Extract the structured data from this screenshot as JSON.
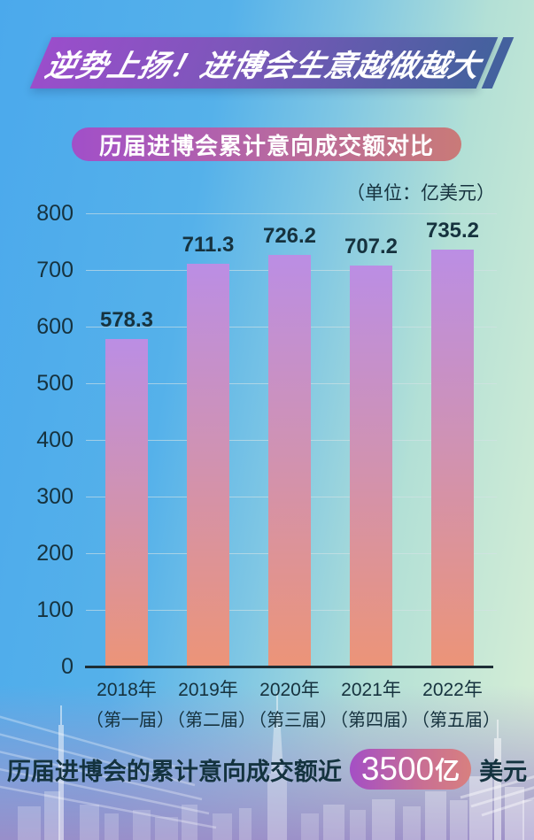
{
  "banner": {
    "title": "逆势上扬！进博会生意越做越大"
  },
  "subtitle": "历届进博会累计意向成交额对比",
  "unit_label": "（单位：亿美元）",
  "chart_data": {
    "type": "bar",
    "title": "历届进博会累计意向成交额对比",
    "unit": "亿美元",
    "categories": [
      {
        "year": "2018年",
        "session": "（第一届）"
      },
      {
        "year": "2019年",
        "session": "（第二届）"
      },
      {
        "year": "2020年",
        "session": "（第三届）"
      },
      {
        "year": "2021年",
        "session": "（第四届）"
      },
      {
        "year": "2022年",
        "session": "（第五届）"
      }
    ],
    "values": [
      578.3,
      711.3,
      726.2,
      707.2,
      735.2
    ],
    "xlabel": "",
    "ylabel": "",
    "ylim": [
      0,
      800
    ],
    "ytick_step": 100,
    "grid": true,
    "legend": "none"
  },
  "footer": {
    "text_before": "历届进博会的累计意向成交额近",
    "highlight_number": "3500",
    "highlight_unit": "亿",
    "text_after": "美元"
  },
  "colors": {
    "background_left": "#4ba9ec",
    "background_right": "#d9efd6",
    "background_bottom": "#9c8dc9",
    "banner_gradient_start": "#9a4ecb",
    "banner_gradient_end": "#44619e",
    "pill_gradient_start": "#a14fc9",
    "pill_gradient_end": "#c97a78",
    "bar_gradient_top": "#bb8ee4",
    "bar_gradient_mid": "#d092b2",
    "bar_gradient_bottom": "#ec9478",
    "text_dark": "#16323e",
    "axis_line": "#1d2e36"
  }
}
